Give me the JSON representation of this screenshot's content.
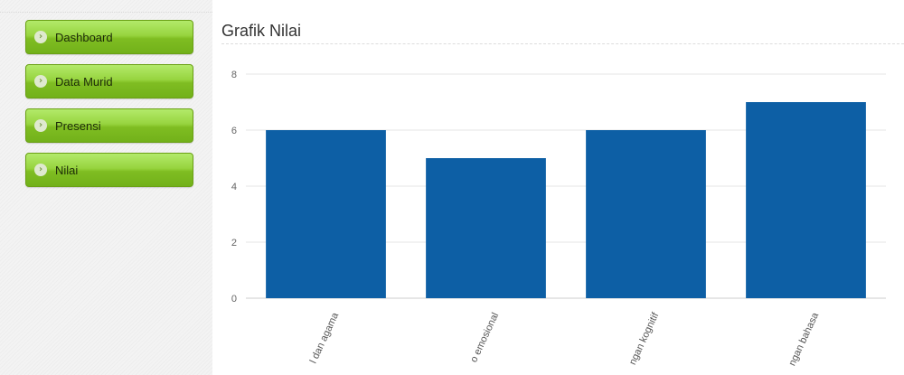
{
  "sidebar": {
    "items": [
      {
        "label": "Dashboard",
        "icon": "chevron-right-icon"
      },
      {
        "label": "Data Murid",
        "icon": "chevron-right-icon"
      },
      {
        "label": "Presensi",
        "icon": "chevron-right-icon"
      },
      {
        "label": "Nilai",
        "icon": "chevron-right-icon"
      }
    ]
  },
  "main": {
    "title": "Grafik Nilai"
  },
  "chart_data": {
    "type": "bar",
    "categories": [
      "l dan agama",
      "o emosional",
      "ngan kognitif",
      "ngan bahasa"
    ],
    "values": [
      6,
      5,
      6,
      7
    ],
    "title": "",
    "xlabel": "",
    "ylabel": "",
    "ylim": [
      0,
      8
    ],
    "yticks": [
      0,
      2,
      4,
      6,
      8
    ],
    "grid": true,
    "bar_color": "#0d5fa5",
    "legend": "none"
  }
}
